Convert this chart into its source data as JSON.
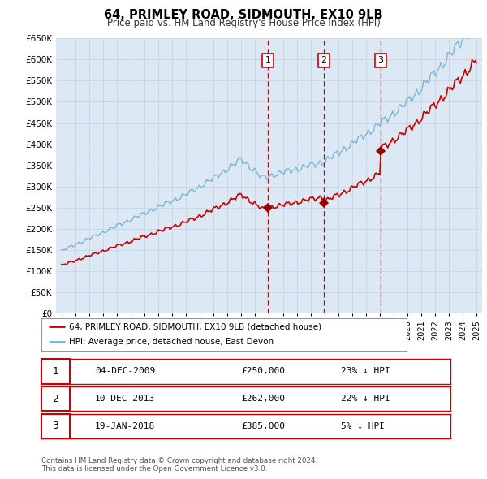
{
  "title": "64, PRIMLEY ROAD, SIDMOUTH, EX10 9LB",
  "subtitle": "Price paid vs. HM Land Registry's House Price Index (HPI)",
  "ylim": [
    0,
    650000
  ],
  "yticks": [
    0,
    50000,
    100000,
    150000,
    200000,
    250000,
    300000,
    350000,
    400000,
    450000,
    500000,
    550000,
    600000,
    650000
  ],
  "ytick_labels": [
    "£0",
    "£50K",
    "£100K",
    "£150K",
    "£200K",
    "£250K",
    "£300K",
    "£350K",
    "£400K",
    "£450K",
    "£500K",
    "£550K",
    "£600K",
    "£650K"
  ],
  "hpi_color": "#7ab3d4",
  "price_color": "#cc0000",
  "dot_color": "#990000",
  "sale_dates": [
    2009.92,
    2013.94,
    2018.05
  ],
  "sale_prices": [
    250000,
    262000,
    385000
  ],
  "sale_labels": [
    "1",
    "2",
    "3"
  ],
  "vline_color": "#cc0000",
  "legend_label_price": "64, PRIMLEY ROAD, SIDMOUTH, EX10 9LB (detached house)",
  "legend_label_hpi": "HPI: Average price, detached house, East Devon",
  "table_rows": [
    {
      "num": "1",
      "date": "04-DEC-2009",
      "price": "£250,000",
      "pct": "23% ↓ HPI"
    },
    {
      "num": "2",
      "date": "10-DEC-2013",
      "price": "£262,000",
      "pct": "22% ↓ HPI"
    },
    {
      "num": "3",
      "date": "19-JAN-2018",
      "price": "£385,000",
      "pct": "5% ↓ HPI"
    }
  ],
  "footnote": "Contains HM Land Registry data © Crown copyright and database right 2024.\nThis data is licensed under the Open Government Licence v3.0.",
  "background_color": "#ffffff",
  "plot_bg_color": "#dde8f5"
}
